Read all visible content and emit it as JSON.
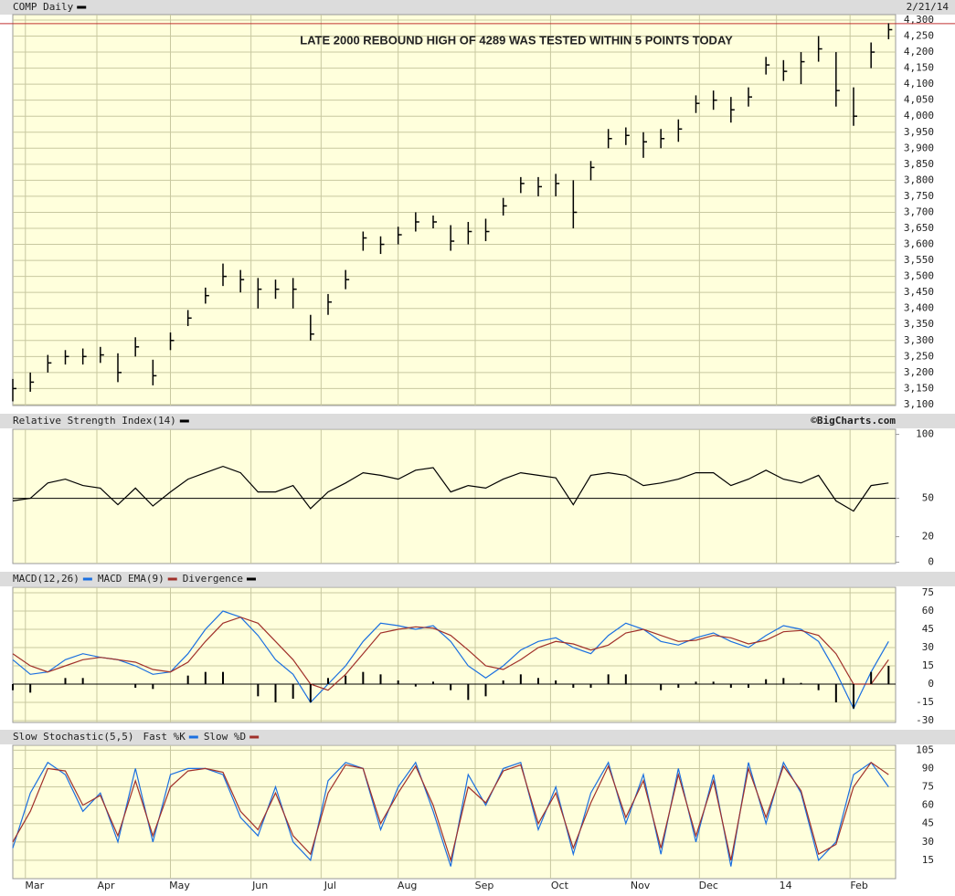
{
  "chart_data": [
    {
      "type": "ohlc",
      "title": "COMP Daily",
      "date": "2/21/14",
      "color": "#000000",
      "annotation": "LATE 2000 REBOUND HIGH OF 4289 WAS TESTED WITHIN 5 POINTS TODAY",
      "annotation_color": "#a0304a",
      "reference_line": {
        "value": 4289,
        "color": "#c03030"
      },
      "xlim": [
        0,
        252
      ],
      "ylim": [
        3097,
        4317
      ],
      "grid": true,
      "x": [
        0,
        5,
        10,
        15,
        20,
        25,
        30,
        35,
        40,
        45,
        50,
        55,
        60,
        65,
        70,
        75,
        80,
        85,
        90,
        95,
        100,
        105,
        110,
        115,
        120,
        125,
        130,
        135,
        140,
        145,
        150,
        155,
        160,
        165,
        170,
        175,
        180,
        185,
        190,
        195,
        200,
        205,
        210,
        215,
        220,
        225,
        230,
        235,
        240,
        245,
        250
      ],
      "high": [
        3180,
        3200,
        3255,
        3270,
        3275,
        3280,
        3260,
        3310,
        3240,
        3325,
        3395,
        3465,
        3540,
        3520,
        3495,
        3490,
        3495,
        3380,
        3445,
        3520,
        3640,
        3625,
        3655,
        3700,
        3690,
        3660,
        3670,
        3680,
        3745,
        3810,
        3810,
        3820,
        3800,
        3860,
        3960,
        3965,
        3950,
        3960,
        3990,
        4065,
        4080,
        4060,
        4090,
        4185,
        4175,
        4200,
        4250,
        4200,
        4090,
        4230,
        4290
      ],
      "low": [
        3110,
        3140,
        3200,
        3225,
        3225,
        3230,
        3170,
        3250,
        3160,
        3270,
        3345,
        3415,
        3470,
        3450,
        3400,
        3430,
        3400,
        3300,
        3380,
        3460,
        3580,
        3570,
        3600,
        3640,
        3650,
        3580,
        3600,
        3610,
        3690,
        3760,
        3750,
        3750,
        3650,
        3800,
        3900,
        3910,
        3870,
        3900,
        3920,
        4010,
        4020,
        3980,
        4030,
        4130,
        4110,
        4100,
        4170,
        4030,
        3970,
        4150,
        4240
      ],
      "close": [
        3150,
        3170,
        3230,
        3250,
        3250,
        3255,
        3200,
        3280,
        3190,
        3300,
        3370,
        3440,
        3500,
        3490,
        3460,
        3460,
        3460,
        3320,
        3420,
        3490,
        3620,
        3600,
        3630,
        3670,
        3670,
        3610,
        3640,
        3640,
        3720,
        3790,
        3780,
        3790,
        3700,
        3840,
        3930,
        3940,
        3920,
        3930,
        3960,
        4040,
        4050,
        4020,
        4060,
        4160,
        4140,
        4170,
        4210,
        4080,
        4000,
        4200,
        4270
      ],
      "yticks": [
        {
          "value": 3100,
          "label": "3,100"
        },
        {
          "value": 3150,
          "label": "3,150"
        },
        {
          "value": 3200,
          "label": "3,200"
        },
        {
          "value": 3250,
          "label": "3,250"
        },
        {
          "value": 3300,
          "label": "3,300"
        },
        {
          "value": 3350,
          "label": "3,350"
        },
        {
          "value": 3400,
          "label": "3,400"
        },
        {
          "value": 3450,
          "label": "3,450"
        },
        {
          "value": 3500,
          "label": "3,500"
        },
        {
          "value": 3550,
          "label": "3,550"
        },
        {
          "value": 3600,
          "label": "3,600"
        },
        {
          "value": 3650,
          "label": "3,650"
        },
        {
          "value": 3700,
          "label": "3,700"
        },
        {
          "value": 3750,
          "label": "3,750"
        },
        {
          "value": 3800,
          "label": "3,800"
        },
        {
          "value": 3850,
          "label": "3,850"
        },
        {
          "value": 3900,
          "label": "3,900"
        },
        {
          "value": 3950,
          "label": "3,950"
        },
        {
          "value": 4000,
          "label": "4,000"
        },
        {
          "value": 4050,
          "label": "4,050"
        },
        {
          "value": 4100,
          "label": "4,100"
        },
        {
          "value": 4150,
          "label": "4,150"
        },
        {
          "value": 4200,
          "label": "4,200"
        },
        {
          "value": 4250,
          "label": "4,250"
        },
        {
          "value": 4300,
          "label": "4,300"
        }
      ]
    },
    {
      "type": "line",
      "title": "Relative Strength Index(14)",
      "credit": "©BigCharts.com",
      "color": "#000000",
      "xlim": [
        0,
        252
      ],
      "ylim": [
        -1,
        104
      ],
      "yticks": [
        0,
        20,
        50,
        100
      ],
      "grid": false,
      "hline": 50,
      "x": [
        0,
        5,
        10,
        15,
        20,
        25,
        30,
        35,
        40,
        45,
        50,
        55,
        60,
        65,
        70,
        75,
        80,
        85,
        90,
        95,
        100,
        105,
        110,
        115,
        120,
        125,
        130,
        135,
        140,
        145,
        150,
        155,
        160,
        165,
        170,
        175,
        180,
        185,
        190,
        195,
        200,
        205,
        210,
        215,
        220,
        225,
        230,
        235,
        240,
        245,
        250
      ],
      "series": [
        {
          "values": [
            48,
            50,
            62,
            65,
            60,
            58,
            45,
            58,
            44,
            55,
            65,
            70,
            75,
            70,
            55,
            55,
            60,
            42,
            55,
            62,
            70,
            68,
            65,
            72,
            74,
            55,
            60,
            58,
            65,
            70,
            68,
            66,
            45,
            68,
            70,
            68,
            60,
            62,
            65,
            70,
            70,
            60,
            65,
            72,
            65,
            62,
            68,
            48,
            40,
            60,
            62
          ],
          "color": "#000000"
        }
      ]
    },
    {
      "type": "macd",
      "xlim": [
        0,
        252
      ],
      "ylim": [
        -31.5,
        79.5
      ],
      "yticks": [
        -30,
        -15,
        0,
        15,
        30,
        45,
        60,
        75
      ],
      "grid": true,
      "hline": 0,
      "x": [
        0,
        5,
        10,
        15,
        20,
        25,
        30,
        35,
        40,
        45,
        50,
        55,
        60,
        65,
        70,
        75,
        80,
        85,
        90,
        95,
        100,
        105,
        110,
        115,
        120,
        125,
        130,
        135,
        140,
        145,
        150,
        155,
        160,
        165,
        170,
        175,
        180,
        185,
        190,
        195,
        200,
        205,
        210,
        215,
        220,
        225,
        230,
        235,
        240,
        245,
        250
      ],
      "series": [
        {
          "name": "MACD(12,26)",
          "color": "#1a6fe0",
          "values": [
            20,
            8,
            10,
            20,
            25,
            22,
            20,
            15,
            8,
            10,
            25,
            45,
            60,
            55,
            40,
            20,
            8,
            -15,
            0,
            15,
            35,
            50,
            48,
            45,
            48,
            35,
            15,
            5,
            15,
            28,
            35,
            38,
            30,
            25,
            40,
            50,
            45,
            35,
            32,
            38,
            42,
            35,
            30,
            40,
            48,
            45,
            35,
            10,
            -20,
            10,
            35
          ]
        },
        {
          "name": "MACD EMA(9)",
          "color": "#a0302a",
          "values": [
            25,
            15,
            10,
            15,
            20,
            22,
            20,
            18,
            12,
            10,
            18,
            35,
            50,
            55,
            50,
            35,
            20,
            0,
            -5,
            8,
            25,
            42,
            45,
            47,
            46,
            40,
            28,
            15,
            12,
            20,
            30,
            35,
            33,
            28,
            32,
            42,
            45,
            40,
            35,
            36,
            40,
            38,
            33,
            36,
            43,
            44,
            40,
            25,
            0,
            0,
            20
          ]
        },
        {
          "name": "Divergence",
          "color": "#000000",
          "bars": true,
          "values": [
            -5,
            -7,
            0,
            5,
            5,
            0,
            0,
            -3,
            -4,
            0,
            7,
            10,
            10,
            0,
            -10,
            -15,
            -12,
            -15,
            5,
            7,
            10,
            8,
            3,
            -2,
            2,
            -5,
            -13,
            -10,
            3,
            8,
            5,
            3,
            -3,
            -3,
            8,
            8,
            0,
            -5,
            -3,
            2,
            2,
            -3,
            -3,
            4,
            5,
            1,
            -5,
            -15,
            -20,
            10,
            15
          ]
        }
      ]
    },
    {
      "type": "line",
      "title": "Slow Stochastic(5,5)",
      "xlim": [
        0,
        252
      ],
      "ylim": [
        0,
        109
      ],
      "yticks": [
        15,
        30,
        45,
        60,
        75,
        90,
        105
      ],
      "grid": true,
      "x": [
        0,
        5,
        10,
        15,
        20,
        25,
        30,
        35,
        40,
        45,
        50,
        55,
        60,
        65,
        70,
        75,
        80,
        85,
        90,
        95,
        100,
        105,
        110,
        115,
        120,
        125,
        130,
        135,
        140,
        145,
        150,
        155,
        160,
        165,
        170,
        175,
        180,
        185,
        190,
        195,
        200,
        205,
        210,
        215,
        220,
        225,
        230,
        235,
        240,
        245,
        250
      ],
      "series": [
        {
          "name": "Fast %K",
          "color": "#1a6fe0",
          "values": [
            25,
            70,
            95,
            85,
            55,
            70,
            30,
            90,
            30,
            85,
            90,
            90,
            85,
            50,
            35,
            75,
            30,
            15,
            80,
            95,
            90,
            40,
            75,
            95,
            55,
            10,
            85,
            60,
            90,
            95,
            40,
            75,
            20,
            70,
            95,
            45,
            85,
            20,
            90,
            30,
            85,
            10,
            95,
            45,
            95,
            70,
            15,
            30,
            85,
            95,
            75
          ]
        },
        {
          "name": "Slow %D",
          "color": "#a0302a",
          "values": [
            30,
            55,
            90,
            88,
            60,
            68,
            35,
            80,
            35,
            75,
            88,
            90,
            87,
            55,
            40,
            70,
            35,
            20,
            70,
            93,
            90,
            45,
            70,
            92,
            60,
            15,
            75,
            62,
            88,
            93,
            45,
            70,
            25,
            62,
            92,
            50,
            80,
            25,
            85,
            35,
            80,
            15,
            90,
            50,
            92,
            72,
            20,
            28,
            75,
            95,
            85
          ]
        }
      ],
      "xticks": [
        {
          "value": 3.6,
          "label": "Mar"
        },
        {
          "value": 24,
          "label": "Apr"
        },
        {
          "value": 45,
          "label": "May"
        },
        {
          "value": 68,
          "label": "Jun"
        },
        {
          "value": 88,
          "label": "Jul"
        },
        {
          "value": 110,
          "label": "Aug"
        },
        {
          "value": 132,
          "label": "Sep"
        },
        {
          "value": 153.5,
          "label": "Oct"
        },
        {
          "value": 176.5,
          "label": "Nov"
        },
        {
          "value": 196,
          "label": "Dec"
        },
        {
          "value": 218,
          "label": "14"
        },
        {
          "value": 239,
          "label": "Feb"
        }
      ]
    }
  ]
}
